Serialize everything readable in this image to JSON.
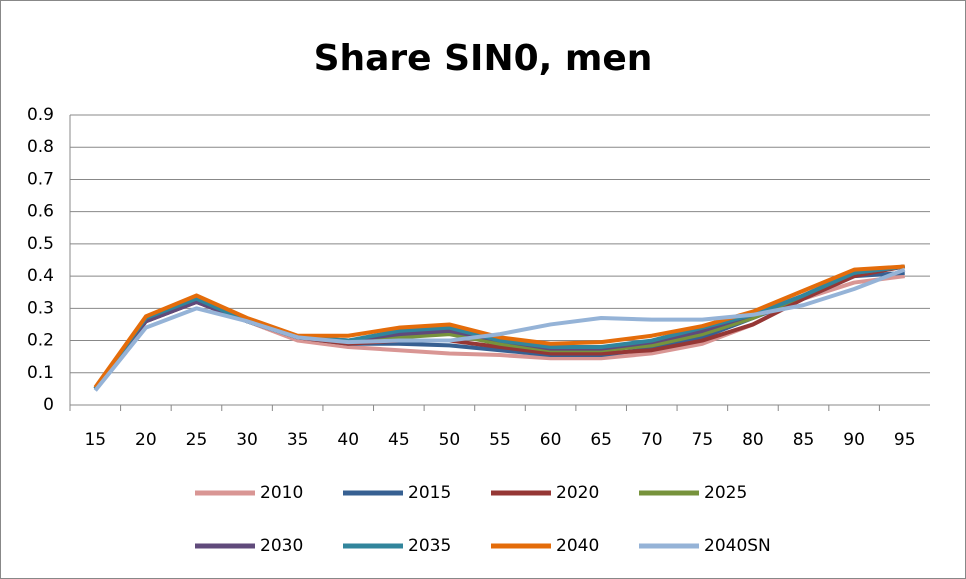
{
  "chart_data": {
    "type": "line",
    "title": "Share SIN0, men",
    "categories": [
      "15",
      "20",
      "25",
      "30",
      "35",
      "40",
      "45",
      "50",
      "55",
      "60",
      "65",
      "70",
      "75",
      "80",
      "85",
      "90",
      "95"
    ],
    "ylim": [
      0,
      0.9
    ],
    "yticks": [
      0,
      0.1,
      0.2,
      0.3,
      0.4,
      0.5,
      0.6,
      0.7,
      0.8,
      0.9
    ],
    "grid": true,
    "legend": "bottom",
    "series": [
      {
        "name": "2010",
        "color": "#d99694",
        "values": [
          0.05,
          0.26,
          0.32,
          0.26,
          0.2,
          0.18,
          0.17,
          0.16,
          0.155,
          0.145,
          0.145,
          0.16,
          0.19,
          0.25,
          0.33,
          0.38,
          0.4
        ]
      },
      {
        "name": "2015",
        "color": "#376092",
        "values": [
          0.05,
          0.26,
          0.32,
          0.26,
          0.21,
          0.19,
          0.19,
          0.185,
          0.17,
          0.155,
          0.155,
          0.175,
          0.21,
          0.27,
          0.33,
          0.4,
          0.41
        ]
      },
      {
        "name": "2020",
        "color": "#953735",
        "values": [
          0.05,
          0.26,
          0.32,
          0.26,
          0.21,
          0.19,
          0.2,
          0.2,
          0.18,
          0.16,
          0.16,
          0.17,
          0.2,
          0.25,
          0.33,
          0.4,
          0.43
        ]
      },
      {
        "name": "2025",
        "color": "#77933c",
        "values": [
          0.05,
          0.27,
          0.33,
          0.26,
          0.21,
          0.2,
          0.21,
          0.22,
          0.19,
          0.17,
          0.17,
          0.185,
          0.22,
          0.27,
          0.34,
          0.41,
          0.43
        ]
      },
      {
        "name": "2030",
        "color": "#604a7b",
        "values": [
          0.05,
          0.26,
          0.32,
          0.26,
          0.21,
          0.2,
          0.22,
          0.23,
          0.2,
          0.175,
          0.175,
          0.195,
          0.23,
          0.28,
          0.34,
          0.41,
          0.43
        ]
      },
      {
        "name": "2035",
        "color": "#31859c",
        "values": [
          0.05,
          0.27,
          0.33,
          0.26,
          0.21,
          0.2,
          0.23,
          0.24,
          0.2,
          0.18,
          0.18,
          0.2,
          0.24,
          0.28,
          0.34,
          0.41,
          0.43
        ]
      },
      {
        "name": "2040",
        "color": "#e46c0a",
        "values": [
          0.055,
          0.275,
          0.34,
          0.27,
          0.215,
          0.215,
          0.24,
          0.25,
          0.21,
          0.19,
          0.195,
          0.215,
          0.245,
          0.29,
          0.355,
          0.42,
          0.43
        ]
      },
      {
        "name": "2040SN",
        "color": "#95b3d7",
        "values": [
          0.045,
          0.24,
          0.3,
          0.26,
          0.21,
          0.195,
          0.2,
          0.2,
          0.22,
          0.25,
          0.27,
          0.265,
          0.265,
          0.28,
          0.31,
          0.36,
          0.42
        ]
      }
    ]
  }
}
